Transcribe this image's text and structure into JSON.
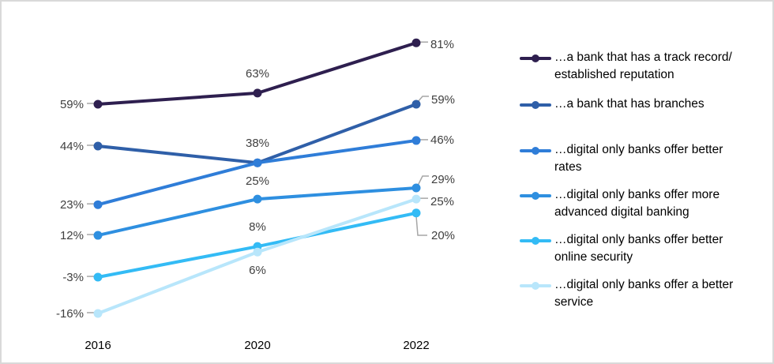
{
  "chart_data": {
    "type": "line",
    "title": "",
    "xlabel": "",
    "ylabel": "",
    "categories": [
      "2016",
      "2020",
      "2022"
    ],
    "ylim": [
      -16,
      81
    ],
    "grid": false,
    "legend_position": "right",
    "series": [
      {
        "name": "…a bank that has a track record/ established reputation",
        "color": "#2E1F4F",
        "values": [
          59,
          63,
          81
        ],
        "labels": [
          "59%",
          "63%",
          "81%"
        ]
      },
      {
        "name": "…a bank that has branches",
        "color": "#2F5FA8",
        "values": [
          44,
          38,
          59
        ],
        "labels": [
          "44%",
          "38%",
          "59%"
        ]
      },
      {
        "name": "…digital only banks offer better rates",
        "color": "#2F7DD8",
        "values": [
          23,
          38,
          46
        ],
        "labels": [
          "23%",
          "",
          "46%"
        ]
      },
      {
        "name": "…digital only banks offer more advanced digital  banking",
        "color": "#2E8FE0",
        "values": [
          12,
          25,
          29
        ],
        "labels": [
          "12%",
          "25%",
          "29%"
        ]
      },
      {
        "name": "…digital only banks offer better online security",
        "color": "#33BBF5",
        "values": [
          -3,
          8,
          20
        ],
        "labels": [
          "-3%",
          "8%",
          "20%"
        ]
      },
      {
        "name": "…digital only banks offer a better service",
        "color": "#B8E6FB",
        "values": [
          -16,
          6,
          25
        ],
        "labels": [
          "-16%",
          "6%",
          "25%"
        ]
      }
    ]
  },
  "legend": {
    "items": [
      {
        "line1": "…a bank that has a track record/",
        "line2": "established reputation"
      },
      {
        "line1": "…a bank that has branches",
        "line2": ""
      },
      {
        "line1": "…digital only banks offer better",
        "line2": "rates"
      },
      {
        "line1": "…digital only banks offer more",
        "line2": "advanced digital  banking"
      },
      {
        "line1": "…digital only banks offer better",
        "line2": "online security"
      },
      {
        "line1": "…digital only banks offer a better",
        "line2": "service"
      }
    ]
  },
  "leader_color": "#A6A6A6",
  "label_color": "#404040"
}
